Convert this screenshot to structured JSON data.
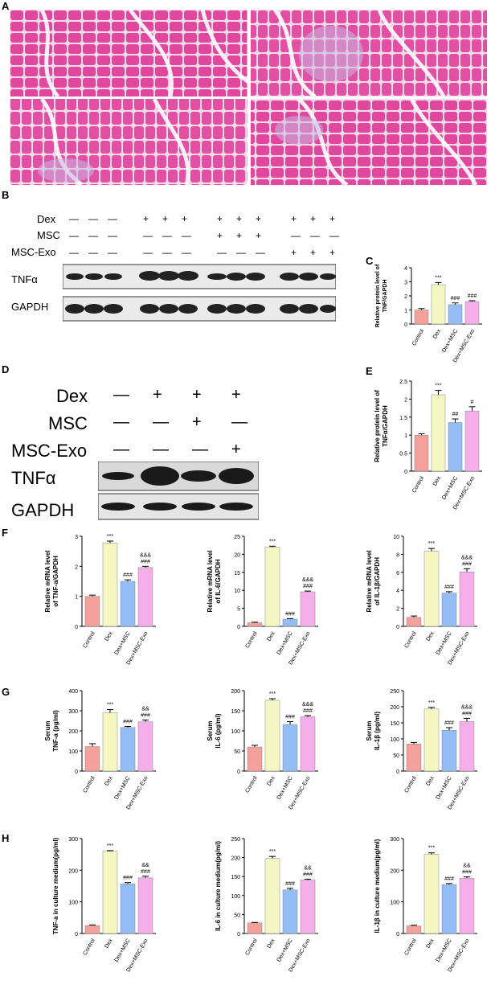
{
  "panels": {
    "A": "A",
    "B": "B",
    "C": "C",
    "D": "D",
    "E": "E",
    "F": "F",
    "G": "G",
    "H": "H"
  },
  "western_blot_B": {
    "rows": [
      "Dex",
      "MSC",
      "MSC-Exo"
    ],
    "bands": [
      "TNFα",
      "GAPDH"
    ],
    "signs": [
      [
        "—",
        "—",
        "—",
        "+",
        "+",
        "+",
        "+",
        "+",
        "+",
        "+",
        "+",
        "+"
      ],
      [
        "—",
        "—",
        "—",
        "—",
        "—",
        "—",
        "+",
        "+",
        "+",
        "—",
        "—",
        "—"
      ],
      [
        "—",
        "—",
        "—",
        "—",
        "—",
        "—",
        "—",
        "—",
        "—",
        "+",
        "+",
        "+"
      ]
    ]
  },
  "western_blot_D": {
    "rows": [
      "Dex",
      "MSC",
      "MSC-Exo"
    ],
    "bands": [
      "TNFα",
      "GAPDH"
    ],
    "signs": [
      [
        "—",
        "+",
        "+",
        "+"
      ],
      [
        "—",
        "—",
        "+",
        "—"
      ],
      [
        "—",
        "—",
        "—",
        "+"
      ]
    ]
  },
  "categories": [
    "Control",
    "Dex",
    "Dex+MSC",
    "Dex+MSC-Exo"
  ],
  "colors": [
    "#f4a09b",
    "#f5f7c2",
    "#92bdf5",
    "#f5aee9"
  ],
  "chart_data": [
    {
      "id": "C",
      "type": "bar",
      "ylabel": [
        "Relative protein level of",
        "TNF/GAPDH"
      ],
      "ylim": [
        0,
        4
      ],
      "ticks": [
        0,
        1,
        2,
        3,
        4
      ],
      "values": [
        1.0,
        2.8,
        1.38,
        1.6
      ],
      "errors": [
        0.1,
        0.15,
        0.12,
        0.06
      ],
      "annotations": [
        [
          "",
          ""
        ],
        [
          "***"
        ],
        [
          "###"
        ],
        [
          "###"
        ]
      ]
    },
    {
      "id": "E",
      "type": "bar",
      "ylabel": [
        "Relative protein level of",
        "TNFα/GAPDH"
      ],
      "ylim": [
        0,
        2.5
      ],
      "ticks": [
        0,
        0.5,
        1.0,
        1.5,
        2.0,
        2.5
      ],
      "values": [
        1.0,
        2.12,
        1.35,
        1.67
      ],
      "errors": [
        0.04,
        0.12,
        0.1,
        0.12
      ],
      "annotations": [
        [
          ""
        ],
        [
          "***"
        ],
        [
          "##"
        ],
        [
          "#"
        ]
      ]
    },
    {
      "id": "F1",
      "type": "bar",
      "ylabel": [
        "Relative mRNA level",
        "of TNF-a/GAPDH"
      ],
      "ylim": [
        0,
        3
      ],
      "ticks": [
        0,
        1,
        2,
        3
      ],
      "values": [
        1.0,
        2.78,
        1.5,
        1.96
      ],
      "errors": [
        0.04,
        0.06,
        0.05,
        0.04
      ],
      "annotations": [
        [
          ""
        ],
        [
          "***"
        ],
        [
          "###"
        ],
        [
          "&&&",
          "###"
        ]
      ]
    },
    {
      "id": "F2",
      "type": "bar",
      "ylabel": [
        "Relative mRNA level",
        "of IL-6/GAPDH"
      ],
      "ylim": [
        0,
        25
      ],
      "ticks": [
        0,
        5,
        10,
        15,
        20,
        25
      ],
      "values": [
        1.0,
        22.0,
        2.0,
        9.6
      ],
      "errors": [
        0.15,
        0.25,
        0.15,
        0.2
      ],
      "annotations": [
        [
          ""
        ],
        [
          "***"
        ],
        [
          "###"
        ],
        [
          "&&&",
          "###"
        ]
      ]
    },
    {
      "id": "F3",
      "type": "bar",
      "ylabel": [
        "Relative mRNA level",
        "of IL-1β/GAPDH"
      ],
      "ylim": [
        0,
        10
      ],
      "ticks": [
        0,
        2,
        4,
        6,
        8,
        10
      ],
      "values": [
        1.0,
        8.35,
        3.7,
        6.05
      ],
      "errors": [
        0.15,
        0.3,
        0.15,
        0.35
      ],
      "annotations": [
        [
          ""
        ],
        [
          "***"
        ],
        [
          "###"
        ],
        [
          "&&&",
          "###"
        ]
      ]
    },
    {
      "id": "G1",
      "type": "bar",
      "ylabel": [
        "Serum",
        "TNF-a (pg/ml)"
      ],
      "ylim": [
        0,
        400
      ],
      "ticks": [
        0,
        100,
        200,
        300,
        400
      ],
      "values": [
        122,
        290,
        217,
        245
      ],
      "errors": [
        14,
        16,
        5,
        9
      ],
      "annotations": [
        [
          ""
        ],
        [
          "***"
        ],
        [
          "###"
        ],
        [
          "&&",
          "###"
        ]
      ]
    },
    {
      "id": "G2",
      "type": "bar",
      "ylabel": [
        "Serum",
        "IL-6 (pg/ml)"
      ],
      "ylim": [
        0,
        200
      ],
      "ticks": [
        0,
        50,
        100,
        150,
        200
      ],
      "values": [
        60,
        176,
        116,
        135
      ],
      "errors": [
        4,
        4,
        7,
        3
      ],
      "annotations": [
        [
          ""
        ],
        [
          "***"
        ],
        [
          "###"
        ],
        [
          "&&&",
          "###"
        ]
      ]
    },
    {
      "id": "G3",
      "type": "bar",
      "ylabel": [
        "Serum",
        "IL-1β (pg/ml)"
      ],
      "ylim": [
        0,
        250
      ],
      "ticks": [
        0,
        50,
        100,
        150,
        200,
        250
      ],
      "values": [
        84,
        193,
        127,
        154
      ],
      "errors": [
        5,
        5,
        8,
        10
      ],
      "annotations": [
        [
          ""
        ],
        [
          "***"
        ],
        [
          "###"
        ],
        [
          "&&&",
          "###"
        ]
      ]
    },
    {
      "id": "H1",
      "type": "bar",
      "ylabel": [
        "TNF-a in culture medium(pg/ml)"
      ],
      "ylim": [
        0,
        300
      ],
      "ticks": [
        0,
        100,
        200,
        300
      ],
      "values": [
        25,
        260,
        157,
        176
      ],
      "errors": [
        2,
        2,
        4,
        5
      ],
      "annotations": [
        [
          ""
        ],
        [
          "***"
        ],
        [
          "###"
        ],
        [
          "&&",
          "###"
        ]
      ]
    },
    {
      "id": "H2",
      "type": "bar",
      "ylabel": [
        "IL-6 in culture medium(pg/ml)"
      ],
      "ylim": [
        0,
        250
      ],
      "ticks": [
        0,
        50,
        100,
        150,
        200,
        250
      ],
      "values": [
        28,
        198,
        115,
        141
      ],
      "errors": [
        1,
        5,
        4,
        2
      ],
      "annotations": [
        [
          ""
        ],
        [
          "***"
        ],
        [
          "###"
        ],
        [
          "&&",
          "###"
        ]
      ]
    },
    {
      "id": "H3",
      "type": "bar",
      "ylabel": [
        "IL-1β in culture medium(pg/ml)"
      ],
      "ylim": [
        0,
        300
      ],
      "ticks": [
        0,
        100,
        200,
        300
      ],
      "values": [
        24,
        250,
        155,
        175
      ],
      "errors": [
        2,
        5,
        3,
        4
      ],
      "annotations": [
        [
          ""
        ],
        [
          "***"
        ],
        [
          "###"
        ],
        [
          "&&",
          "###"
        ]
      ]
    }
  ]
}
